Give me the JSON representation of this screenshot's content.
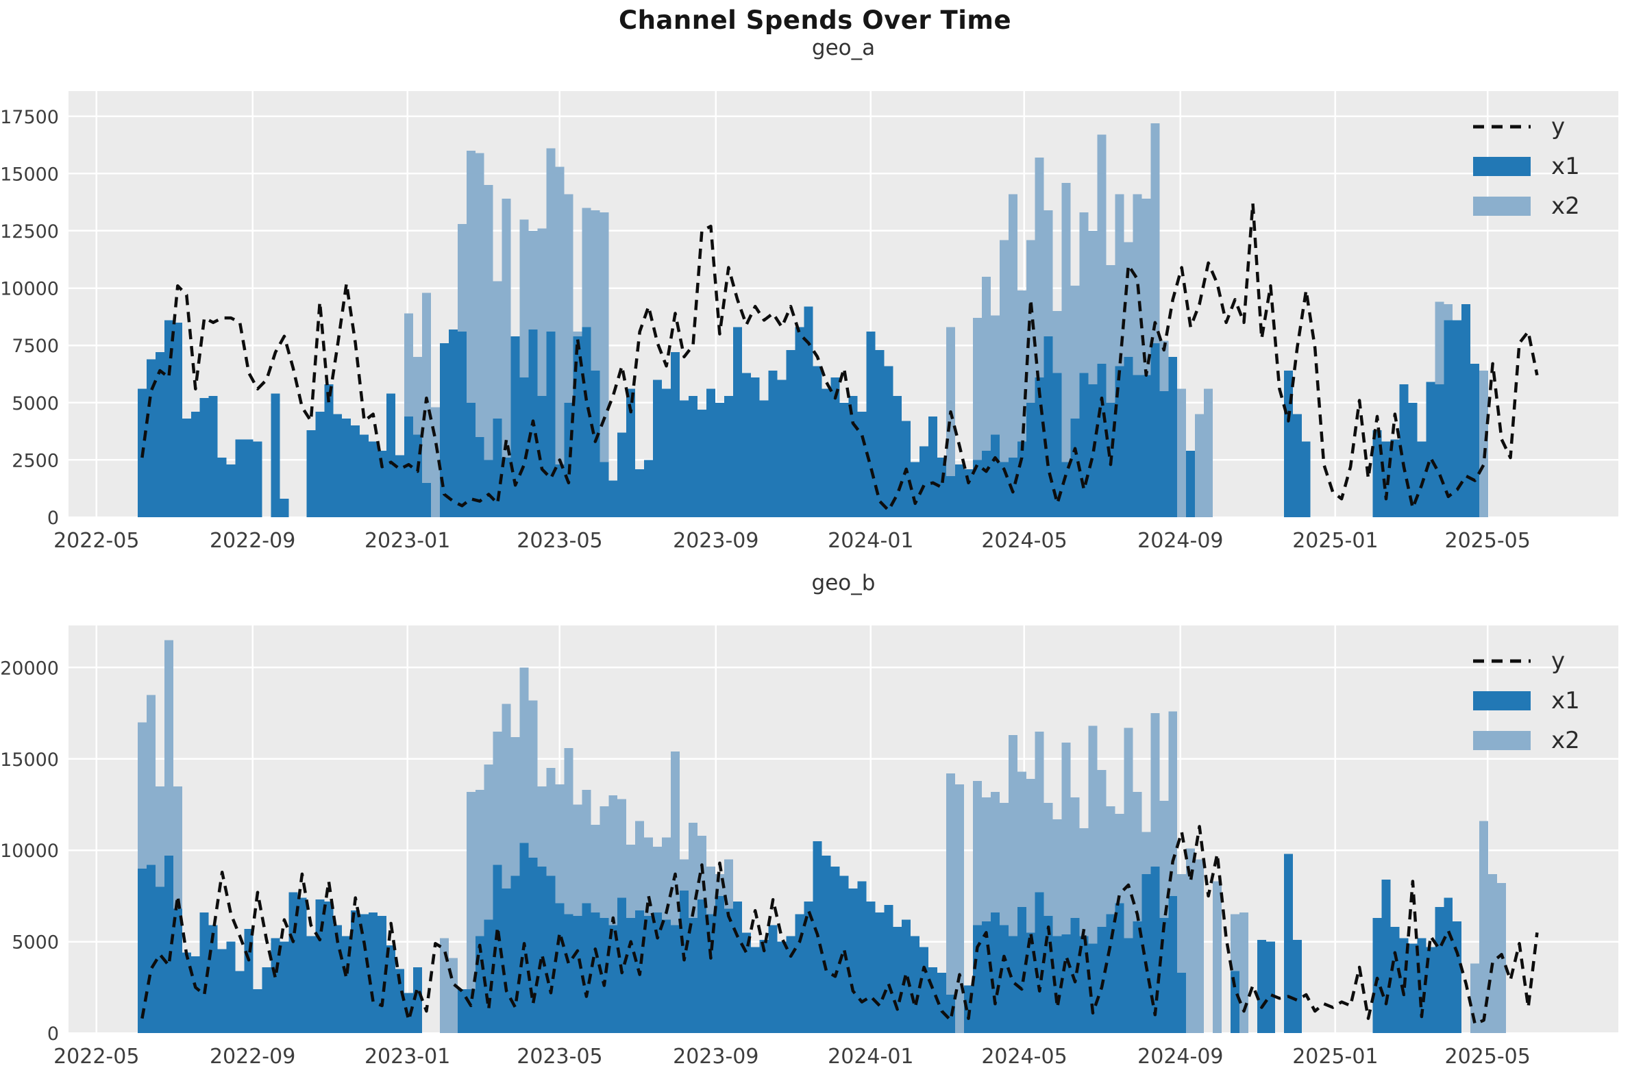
{
  "figure": {
    "title": "Channel Spends Over Time"
  },
  "colors": {
    "x1": "#2278b5",
    "x2": "#8bafcd",
    "y_line": "#0d0d0d",
    "plot_bg": "#ebebeb",
    "grid": "#ffffff",
    "tick_text": "#3d3d3d"
  },
  "legend": {
    "items": [
      {
        "label": "y",
        "type": "dashed-line"
      },
      {
        "label": "x1",
        "type": "swatch"
      },
      {
        "label": "x2",
        "type": "swatch"
      }
    ]
  },
  "x_axis": {
    "tick_labels": [
      "2022-05",
      "2022-09",
      "2023-01",
      "2023-05",
      "2023-09",
      "2024-01",
      "2024-05",
      "2024-09",
      "2025-01",
      "2025-05"
    ],
    "tick_days": [
      -36,
      87,
      209,
      329,
      452,
      574,
      695,
      818,
      940,
      1060
    ],
    "domain_days": [
      -58,
      1163
    ],
    "start_date": "2022-06-06",
    "week_step_days": 7
  },
  "chart_data": [
    {
      "type": "bar",
      "title": "geo_a",
      "ylim": [
        0,
        18600
      ],
      "yticks": [
        0,
        2500,
        5000,
        7500,
        10000,
        12500,
        15000,
        17500
      ],
      "legend_position": "upper right",
      "grid": true,
      "series": [
        {
          "name": "x2",
          "type": "bar",
          "values": [
            0,
            0,
            0,
            0,
            0,
            0,
            0,
            0,
            0,
            0,
            0,
            0,
            0,
            0,
            0,
            0,
            0,
            0,
            0,
            0,
            0,
            0,
            0,
            0,
            0,
            0,
            0,
            0,
            0,
            0,
            8900,
            7000,
            9800,
            4800,
            0,
            0,
            12800,
            16000,
            15900,
            14500,
            10300,
            13900,
            7400,
            13000,
            12500,
            12600,
            16100,
            15300,
            14100,
            8100,
            13500,
            13400,
            13300,
            0,
            0,
            0,
            0,
            0,
            0,
            0,
            0,
            0,
            0,
            0,
            0,
            0,
            0,
            0,
            0,
            0,
            0,
            0,
            0,
            0,
            0,
            0,
            0,
            0,
            0,
            0,
            0,
            0,
            0,
            0,
            0,
            0,
            0,
            0,
            0,
            0,
            0,
            8300,
            0,
            0,
            8700,
            10500,
            8800,
            12100,
            14100,
            9900,
            12100,
            15700,
            13400,
            9000,
            14600,
            10100,
            13300,
            12500,
            16700,
            11000,
            14100,
            12000,
            14100,
            13900,
            17200,
            7700,
            4600,
            5600,
            0,
            4500,
            5600,
            0,
            0,
            0,
            0,
            0,
            0,
            0,
            0,
            0,
            0,
            0,
            0,
            0,
            0,
            0,
            0,
            0,
            0,
            0,
            0,
            0,
            0,
            0,
            0,
            0,
            9400,
            9300,
            5000,
            7600,
            6500,
            6400,
            0
          ]
        },
        {
          "name": "x1",
          "type": "bar",
          "values": [
            5600,
            6900,
            7200,
            8600,
            8500,
            4300,
            4600,
            5200,
            5300,
            2600,
            2300,
            3400,
            3400,
            3300,
            0,
            5400,
            800,
            0,
            0,
            3800,
            4600,
            5800,
            4500,
            4300,
            4000,
            3600,
            3300,
            2900,
            5400,
            2700,
            4400,
            3600,
            1500,
            0,
            7600,
            8200,
            8100,
            5000,
            3500,
            2500,
            4300,
            2600,
            7900,
            6100,
            8200,
            5300,
            8100,
            2300,
            5000,
            7900,
            8300,
            6400,
            2400,
            1600,
            3700,
            5600,
            2100,
            2500,
            6000,
            5600,
            7200,
            5100,
            5300,
            4700,
            5600,
            5000,
            5300,
            8300,
            6300,
            6100,
            5100,
            6400,
            6000,
            7300,
            8300,
            9200,
            6600,
            5600,
            6100,
            5000,
            5300,
            4600,
            8100,
            7300,
            6600,
            5300,
            4200,
            2400,
            3100,
            4400,
            2600,
            1800,
            2300,
            2100,
            2500,
            2900,
            3600,
            2400,
            2600,
            3300,
            5000,
            6100,
            7900,
            6300,
            2400,
            4300,
            6300,
            5800,
            6700,
            5000,
            6600,
            7000,
            6200,
            6200,
            7600,
            5500,
            7000,
            0,
            2900,
            0,
            0,
            0,
            0,
            0,
            0,
            0,
            0,
            0,
            0,
            6400,
            4500,
            3300,
            0,
            0,
            0,
            0,
            0,
            0,
            0,
            3800,
            3300,
            3400,
            5800,
            5000,
            3300,
            5900,
            5800,
            8600,
            8600,
            9300,
            6700,
            0,
            0,
            0,
            0,
            0,
            0,
            0
          ]
        },
        {
          "name": "y",
          "type": "line",
          "values": [
            2600,
            5500,
            6400,
            6100,
            10100,
            9700,
            5600,
            8700,
            8500,
            8700,
            8700,
            8500,
            6300,
            5600,
            6000,
            7200,
            7900,
            6500,
            4800,
            4200,
            9400,
            5000,
            7500,
            10200,
            7600,
            4200,
            4500,
            2200,
            2400,
            2100,
            2300,
            2000,
            5200,
            3400,
            1000,
            700,
            500,
            800,
            700,
            1000,
            600,
            3400,
            1400,
            2300,
            4200,
            2100,
            1700,
            2500,
            1500,
            7800,
            5100,
            3300,
            4300,
            5300,
            6600,
            4600,
            8100,
            9200,
            7600,
            6600,
            8900,
            7000,
            7500,
            12500,
            12700,
            8000,
            10900,
            9500,
            8400,
            9200,
            8600,
            8900,
            8300,
            9200,
            8000,
            7600,
            7000,
            5900,
            5200,
            6500,
            4100,
            3600,
            2200,
            700,
            300,
            1000,
            2100,
            600,
            1400,
            1500,
            1300,
            4600,
            3100,
            1500,
            2300,
            2000,
            2600,
            2100,
            1100,
            2600,
            9500,
            5400,
            2100,
            600,
            1900,
            3000,
            1200,
            2700,
            5200,
            2300,
            6400,
            11000,
            10400,
            6200,
            8500,
            7300,
            9500,
            10900,
            8300,
            9300,
            11100,
            10200,
            8500,
            9500,
            8500,
            13700,
            7800,
            10100,
            5600,
            4200,
            7400,
            9900,
            7400,
            2300,
            1100,
            800,
            2200,
            5100,
            1700,
            4400,
            800,
            4500,
            2200,
            400,
            1400,
            2600,
            1900,
            900,
            1200,
            1800,
            1600,
            2300,
            6700,
            3400,
            2600,
            7600,
            8100,
            6200
          ]
        }
      ]
    },
    {
      "type": "bar",
      "title": "geo_b",
      "ylim": [
        0,
        22300
      ],
      "yticks": [
        0,
        5000,
        10000,
        15000,
        20000
      ],
      "legend_position": "upper right",
      "grid": true,
      "series": [
        {
          "name": "x2",
          "type": "bar",
          "values": [
            17000,
            18500,
            13500,
            21500,
            13500,
            0,
            0,
            0,
            0,
            0,
            0,
            0,
            0,
            0,
            0,
            0,
            0,
            0,
            0,
            0,
            0,
            0,
            0,
            0,
            0,
            0,
            0,
            0,
            0,
            0,
            0,
            0,
            0,
            0,
            5200,
            4100,
            0,
            13200,
            13300,
            14700,
            16500,
            18000,
            16200,
            20000,
            18200,
            13500,
            14500,
            13600,
            15600,
            12500,
            13300,
            11400,
            12400,
            13000,
            12800,
            10300,
            11600,
            10700,
            10200,
            10700,
            15400,
            9500,
            11500,
            10800,
            9100,
            8700,
            9500,
            0,
            0,
            0,
            0,
            0,
            0,
            0,
            0,
            0,
            0,
            0,
            0,
            0,
            0,
            0,
            0,
            0,
            0,
            0,
            0,
            0,
            0,
            0,
            0,
            14200,
            13600,
            0,
            13800,
            12900,
            13200,
            12600,
            16300,
            14300,
            13900,
            16500,
            12600,
            11700,
            15900,
            12900,
            11200,
            16800,
            14400,
            12400,
            12000,
            16700,
            13200,
            11000,
            17500,
            12700,
            17600,
            8700,
            10100,
            9500,
            0,
            8300,
            0,
            6500,
            6600,
            0,
            0,
            0,
            0,
            0,
            0,
            0,
            0,
            0,
            0,
            0,
            0,
            0,
            0,
            0,
            0,
            0,
            0,
            0,
            0,
            0,
            0,
            0,
            0,
            0,
            3800,
            11600,
            8700,
            8200,
            0
          ]
        },
        {
          "name": "x1",
          "type": "bar",
          "values": [
            9000,
            9200,
            8000,
            9700,
            6800,
            4400,
            4200,
            6600,
            5900,
            4600,
            5000,
            3400,
            5700,
            2400,
            3600,
            5200,
            5000,
            7700,
            7400,
            5300,
            7300,
            7200,
            5900,
            5300,
            6700,
            6500,
            6600,
            6400,
            4800,
            3500,
            2200,
            3600,
            0,
            0,
            0,
            0,
            2400,
            2400,
            5300,
            6200,
            9200,
            7900,
            8600,
            10400,
            9600,
            9100,
            8600,
            7100,
            6500,
            6400,
            7100,
            6600,
            6300,
            5900,
            7400,
            6300,
            6700,
            6400,
            6600,
            6200,
            5900,
            7800,
            6300,
            7300,
            6500,
            7500,
            6800,
            7200,
            5500,
            4700,
            5100,
            5900,
            5000,
            5300,
            6500,
            7200,
            10500,
            9700,
            9100,
            8600,
            7900,
            8300,
            7200,
            6600,
            7000,
            5800,
            6200,
            5300,
            4700,
            3600,
            3300,
            2100,
            0,
            2600,
            5900,
            6100,
            6600,
            5900,
            5300,
            6900,
            5500,
            7700,
            6400,
            5300,
            5400,
            6300,
            5300,
            4900,
            5800,
            6500,
            7100,
            5200,
            6100,
            8700,
            9100,
            6300,
            7500,
            3300,
            0,
            0,
            0,
            0,
            0,
            3400,
            0,
            0,
            5100,
            5000,
            0,
            9800,
            5100,
            0,
            0,
            0,
            0,
            0,
            0,
            0,
            0,
            6300,
            8400,
            5800,
            5200,
            4900,
            5200,
            4700,
            6900,
            7400,
            6100,
            0,
            0,
            0,
            0,
            0,
            0,
            0,
            0,
            0
          ]
        },
        {
          "name": "y",
          "type": "line",
          "values": [
            800,
            3500,
            4300,
            3700,
            7500,
            4300,
            2500,
            2100,
            5500,
            8800,
            6500,
            5300,
            4000,
            7700,
            5100,
            3000,
            6200,
            5000,
            8700,
            5900,
            5100,
            8300,
            5000,
            3000,
            7400,
            4900,
            1700,
            1500,
            6000,
            2700,
            700,
            2500,
            1200,
            4900,
            4600,
            2700,
            2300,
            1500,
            4800,
            1300,
            5800,
            2300,
            1400,
            4900,
            1600,
            4300,
            2200,
            5500,
            3800,
            4500,
            2000,
            4600,
            2600,
            6300,
            3300,
            5000,
            3200,
            7500,
            5200,
            6600,
            8700,
            4000,
            6600,
            9200,
            4100,
            9300,
            6400,
            5300,
            4400,
            6700,
            4500,
            7300,
            5200,
            4200,
            5000,
            6700,
            5400,
            3400,
            3100,
            4600,
            2300,
            1700,
            2000,
            1500,
            2700,
            1300,
            3300,
            1400,
            3600,
            2400,
            1200,
            700,
            3200,
            800,
            4700,
            5500,
            1600,
            4200,
            2800,
            2400,
            5500,
            2300,
            5800,
            1400,
            4200,
            2800,
            5700,
            1100,
            2500,
            4900,
            7600,
            8100,
            6500,
            3700,
            1000,
            5900,
            9400,
            11000,
            8300,
            11300,
            7500,
            9800,
            5200,
            2400,
            1200,
            2600,
            1400,
            2100,
            1900,
            2000,
            1800,
            2100,
            1200,
            1600,
            1400,
            1700,
            1500,
            3600,
            800,
            3000,
            1600,
            4400,
            2100,
            8300,
            900,
            5300,
            4600,
            5600,
            4400,
            2700,
            500,
            700,
            3900,
            4300,
            2900,
            4900,
            1400,
            5500
          ]
        }
      ]
    }
  ]
}
